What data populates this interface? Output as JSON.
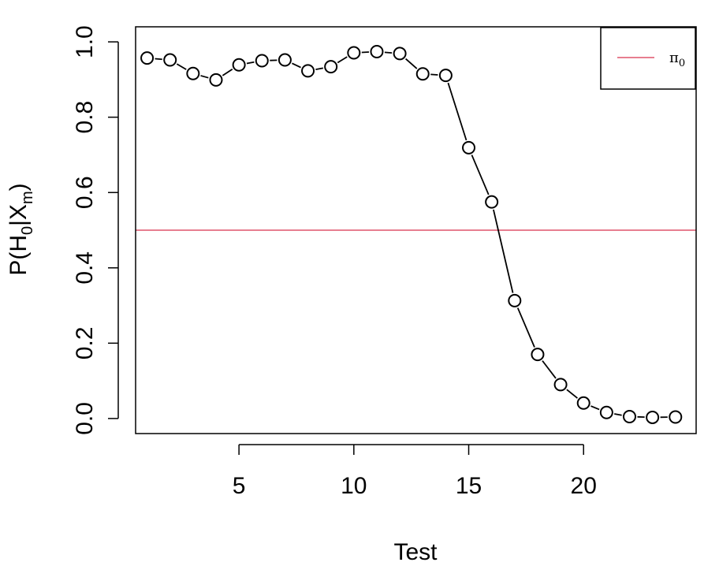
{
  "chart_data": {
    "type": "scatter",
    "title": "",
    "xlabel": "Test",
    "ylabel": {
      "prefix": "P(H",
      "sub1": "0",
      "mid": "|X",
      "sub2": "m",
      "suffix": ")"
    },
    "xlim": [
      0.5,
      24.9
    ],
    "ylim": [
      -0.04,
      1.04
    ],
    "x_ticks": [
      5,
      10,
      15,
      20
    ],
    "x_tick_labels": [
      "5",
      "10",
      "15",
      "20"
    ],
    "y_ticks": [
      0.0,
      0.2,
      0.4,
      0.6,
      0.8,
      1.0
    ],
    "y_tick_labels": [
      "0.0",
      "0.2",
      "0.4",
      "0.6",
      "0.8",
      "1.0"
    ],
    "series": [
      {
        "x": [
          1,
          2,
          3,
          4,
          5,
          6,
          7,
          8,
          9,
          10,
          11,
          12,
          13,
          14,
          15,
          16,
          17,
          18,
          19,
          20,
          21,
          22,
          23,
          24
        ],
        "values": [
          0.957,
          0.952,
          0.916,
          0.899,
          0.939,
          0.95,
          0.952,
          0.923,
          0.934,
          0.971,
          0.974,
          0.969,
          0.915,
          0.911,
          0.719,
          0.575,
          0.313,
          0.17,
          0.09,
          0.041,
          0.016,
          0.005,
          0.003,
          0.004
        ],
        "marker": "open-circle",
        "line": "connecting",
        "color": "#000000"
      }
    ],
    "hline": {
      "y": 0.5,
      "name": "π",
      "name_sub": "0",
      "color": "#DF536B"
    },
    "legend": {
      "position": "top-right"
    },
    "grid": false
  }
}
